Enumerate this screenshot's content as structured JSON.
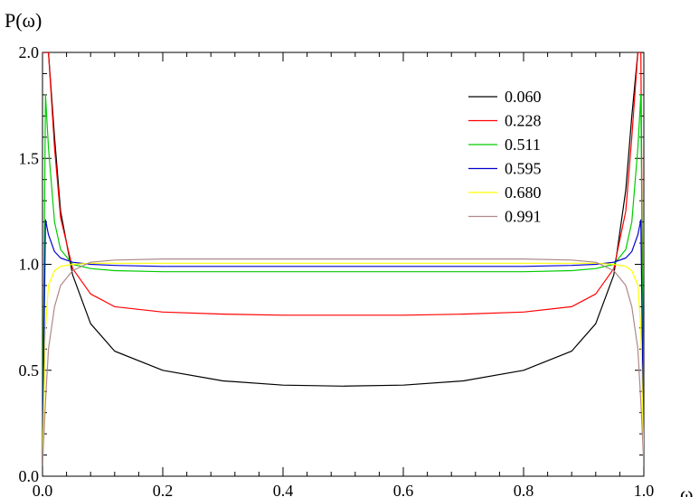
{
  "chart_data": {
    "type": "line",
    "xlabel": "ω",
    "ylabel": "P(ω)",
    "xlim": [
      0.0,
      1.0
    ],
    "ylim": [
      0.0,
      2.0
    ],
    "x_ticks": [
      "0.0",
      "0.2",
      "0.4",
      "0.6",
      "0.8",
      "1.0"
    ],
    "y_ticks": [
      "0.0",
      "0.5",
      "1.0",
      "1.5",
      "2.0"
    ],
    "grid": false,
    "legend_position": "top-right",
    "x": [
      0.0,
      0.005,
      0.01,
      0.02,
      0.03,
      0.05,
      0.08,
      0.12,
      0.2,
      0.3,
      0.4,
      0.5,
      0.6,
      0.7,
      0.8,
      0.88,
      0.92,
      0.95,
      0.97,
      0.98,
      0.99,
      0.995,
      1.0
    ],
    "series": [
      {
        "name": "0.060",
        "color": "#000000",
        "values": [
          2.0,
          2.0,
          2.0,
          1.6,
          1.25,
          0.95,
          0.72,
          0.59,
          0.5,
          0.45,
          0.43,
          0.425,
          0.43,
          0.45,
          0.5,
          0.59,
          0.72,
          0.95,
          1.35,
          1.7,
          2.0,
          2.0,
          2.0
        ]
      },
      {
        "name": "0.228",
        "color": "#ff0000",
        "values": [
          2.0,
          2.0,
          2.0,
          1.55,
          1.22,
          0.98,
          0.86,
          0.8,
          0.775,
          0.765,
          0.76,
          0.76,
          0.76,
          0.765,
          0.775,
          0.8,
          0.86,
          0.98,
          1.25,
          1.6,
          2.0,
          2.0,
          0.05
        ]
      },
      {
        "name": "0.511",
        "color": "#00cc00",
        "values": [
          0.05,
          1.8,
          1.55,
          1.2,
          1.07,
          1.0,
          0.98,
          0.97,
          0.965,
          0.965,
          0.965,
          0.965,
          0.965,
          0.965,
          0.965,
          0.97,
          0.98,
          1.0,
          1.07,
          1.2,
          1.55,
          1.8,
          0.05
        ]
      },
      {
        "name": "0.595",
        "color": "#0000cc",
        "values": [
          0.05,
          1.21,
          1.14,
          1.06,
          1.03,
          1.01,
          1.0,
          0.995,
          0.99,
          0.99,
          0.99,
          0.99,
          0.99,
          0.99,
          0.99,
          0.995,
          1.0,
          1.01,
          1.03,
          1.06,
          1.14,
          1.21,
          0.05
        ]
      },
      {
        "name": "0.680",
        "color": "#ffff00",
        "values": [
          0.05,
          0.7,
          0.9,
          0.97,
          0.99,
          1.0,
          1.005,
          1.005,
          1.005,
          1.005,
          1.005,
          1.005,
          1.005,
          1.005,
          1.005,
          1.005,
          1.005,
          1.0,
          0.99,
          0.97,
          0.9,
          0.7,
          0.05
        ]
      },
      {
        "name": "0.991",
        "color": "#b08888",
        "values": [
          0.05,
          0.35,
          0.6,
          0.8,
          0.9,
          0.97,
          1.01,
          1.02,
          1.025,
          1.025,
          1.025,
          1.025,
          1.025,
          1.025,
          1.025,
          1.02,
          1.01,
          0.97,
          0.9,
          0.8,
          0.6,
          0.35,
          0.05
        ]
      }
    ]
  }
}
